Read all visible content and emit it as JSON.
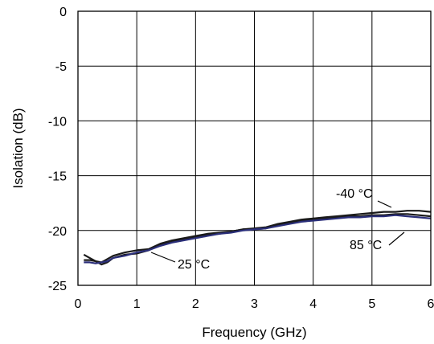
{
  "chart_data": {
    "type": "line",
    "title": "",
    "xlabel": "Frequency (GHz)",
    "ylabel": "Isolation (dB)",
    "xlim": [
      0,
      6
    ],
    "ylim": [
      -25,
      0
    ],
    "xticks": [
      0,
      1,
      2,
      3,
      4,
      5,
      6
    ],
    "yticks": [
      0,
      -5,
      -10,
      -15,
      -20,
      -25
    ],
    "grid": true,
    "legend": "none",
    "colors": {
      "series": "#1a1a1a",
      "accent": "#2b2f7a",
      "grid": "#000000"
    },
    "series": [
      {
        "name": "-40 °C",
        "x": [
          0.1,
          0.2,
          0.3,
          0.4,
          0.5,
          0.6,
          0.8,
          1.0,
          1.2,
          1.4,
          1.6,
          1.8,
          2.0,
          2.2,
          2.4,
          2.6,
          2.8,
          3.0,
          3.2,
          3.4,
          3.6,
          3.8,
          4.0,
          4.2,
          4.4,
          4.6,
          4.8,
          5.0,
          5.2,
          5.4,
          5.6,
          5.8,
          6.0
        ],
        "y": [
          -22.7,
          -22.7,
          -22.8,
          -22.9,
          -22.6,
          -22.3,
          -22.0,
          -21.8,
          -21.7,
          -21.2,
          -20.9,
          -20.7,
          -20.5,
          -20.3,
          -20.2,
          -20.1,
          -19.9,
          -19.8,
          -19.7,
          -19.4,
          -19.2,
          -19.0,
          -18.9,
          -18.8,
          -18.7,
          -18.6,
          -18.5,
          -18.4,
          -18.3,
          -18.3,
          -18.2,
          -18.2,
          -18.3
        ]
      },
      {
        "name": "25 °C",
        "x": [
          0.1,
          0.2,
          0.3,
          0.4,
          0.5,
          0.6,
          0.8,
          1.0,
          1.2,
          1.4,
          1.6,
          1.8,
          2.0,
          2.2,
          2.4,
          2.6,
          2.8,
          3.0,
          3.2,
          3.4,
          3.6,
          3.8,
          4.0,
          4.2,
          4.4,
          4.6,
          4.8,
          5.0,
          5.2,
          5.4,
          5.6,
          5.8,
          6.0
        ],
        "y": [
          -22.2,
          -22.5,
          -22.8,
          -23.1,
          -22.9,
          -22.5,
          -22.2,
          -22.1,
          -21.8,
          -21.3,
          -21.0,
          -20.8,
          -20.6,
          -20.4,
          -20.3,
          -20.1,
          -19.9,
          -19.9,
          -19.8,
          -19.5,
          -19.3,
          -19.1,
          -19.0,
          -18.9,
          -18.8,
          -18.7,
          -18.7,
          -18.6,
          -18.6,
          -18.5,
          -18.5,
          -18.6,
          -18.7
        ]
      },
      {
        "name": "85 °C",
        "x": [
          0.1,
          0.2,
          0.3,
          0.4,
          0.5,
          0.6,
          0.8,
          1.0,
          1.2,
          1.4,
          1.6,
          1.8,
          2.0,
          2.2,
          2.4,
          2.6,
          2.8,
          3.0,
          3.2,
          3.4,
          3.6,
          3.8,
          4.0,
          4.2,
          4.4,
          4.6,
          4.8,
          5.0,
          5.2,
          5.4,
          5.6,
          5.8,
          6.0
        ],
        "y": [
          -22.9,
          -22.9,
          -23.0,
          -22.9,
          -22.8,
          -22.5,
          -22.3,
          -22.0,
          -21.8,
          -21.4,
          -21.1,
          -20.9,
          -20.7,
          -20.5,
          -20.3,
          -20.2,
          -20.0,
          -19.9,
          -19.8,
          -19.6,
          -19.4,
          -19.2,
          -19.1,
          -19.0,
          -18.9,
          -18.8,
          -18.8,
          -18.7,
          -18.7,
          -18.6,
          -18.7,
          -18.8,
          -18.9
        ]
      }
    ],
    "annotations": [
      {
        "text": "-40 °C",
        "series": "-40 °C"
      },
      {
        "text": "25 °C",
        "series": "25 °C"
      },
      {
        "text": "85 °C",
        "series": "85 °C"
      }
    ]
  }
}
